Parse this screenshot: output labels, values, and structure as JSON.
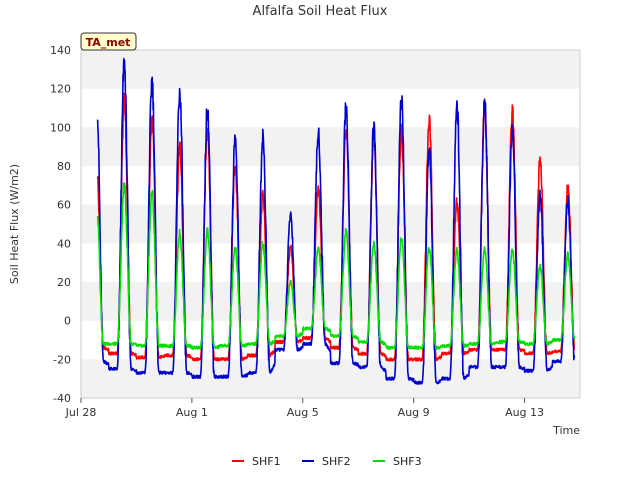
{
  "chart_data": {
    "type": "line",
    "title": "Alfalfa Soil Heat Flux",
    "xlabel": "Time",
    "ylabel": "Soil Heat Flux (W/m2)",
    "ylim": [
      -40,
      140
    ],
    "xlim": [
      "2023-07-28",
      "2023-08-15"
    ],
    "yticks": [
      -40,
      -20,
      0,
      20,
      40,
      60,
      80,
      100,
      120,
      140
    ],
    "xticks": [
      {
        "date": "2023-07-28",
        "label": "Jul 28"
      },
      {
        "date": "2023-08-01",
        "label": "Aug 1"
      },
      {
        "date": "2023-08-05",
        "label": "Aug 5"
      },
      {
        "date": "2023-08-09",
        "label": "Aug 9"
      },
      {
        "date": "2023-08-13",
        "label": "Aug 13"
      }
    ],
    "grid": "horizontal bands",
    "legend_position": "bottom-center",
    "annotation": "TA_met",
    "series": [
      {
        "name": "SHF1",
        "color": "#ff0000",
        "daily_peaks": [
          {
            "date": "2023-07-28",
            "peak": 82,
            "min": -14
          },
          {
            "date": "2023-07-29",
            "peak": 113,
            "min": -17
          },
          {
            "date": "2023-07-30",
            "peak": 104,
            "min": -19
          },
          {
            "date": "2023-07-31",
            "peak": 90,
            "min": -18
          },
          {
            "date": "2023-08-01",
            "peak": 98,
            "min": -20
          },
          {
            "date": "2023-08-02",
            "peak": 80,
            "min": -20
          },
          {
            "date": "2023-08-03",
            "peak": 65,
            "min": -18
          },
          {
            "date": "2023-08-04",
            "peak": 38,
            "min": -11
          },
          {
            "date": "2023-08-05",
            "peak": 68,
            "min": -9
          },
          {
            "date": "2023-08-06",
            "peak": 98,
            "min": -14
          },
          {
            "date": "2023-08-07",
            "peak": 95,
            "min": -17
          },
          {
            "date": "2023-08-08",
            "peak": 98,
            "min": -20
          },
          {
            "date": "2023-08-09",
            "peak": 103,
            "min": -20
          },
          {
            "date": "2023-08-10",
            "peak": 62,
            "min": -17
          },
          {
            "date": "2023-08-11",
            "peak": 110,
            "min": -15
          },
          {
            "date": "2023-08-12",
            "peak": 108,
            "min": -15
          },
          {
            "date": "2023-08-13",
            "peak": 83,
            "min": -17
          },
          {
            "date": "2023-08-14",
            "peak": 70,
            "min": -16
          }
        ]
      },
      {
        "name": "SHF2",
        "color": "#0000cc",
        "daily_peaks": [
          {
            "date": "2023-07-28",
            "peak": 118,
            "min": -21
          },
          {
            "date": "2023-07-29",
            "peak": 133,
            "min": -25
          },
          {
            "date": "2023-07-30",
            "peak": 124,
            "min": -27
          },
          {
            "date": "2023-07-31",
            "peak": 118,
            "min": -27
          },
          {
            "date": "2023-08-01",
            "peak": 110,
            "min": -29
          },
          {
            "date": "2023-08-02",
            "peak": 94,
            "min": -29
          },
          {
            "date": "2023-08-03",
            "peak": 95,
            "min": -27
          },
          {
            "date": "2023-08-04",
            "peak": 55,
            "min": -15
          },
          {
            "date": "2023-08-05",
            "peak": 97,
            "min": -12
          },
          {
            "date": "2023-08-06",
            "peak": 110,
            "min": -22
          },
          {
            "date": "2023-08-07",
            "peak": 99,
            "min": -24
          },
          {
            "date": "2023-08-08",
            "peak": 115,
            "min": -30
          },
          {
            "date": "2023-08-09",
            "peak": 90,
            "min": -32
          },
          {
            "date": "2023-08-10",
            "peak": 112,
            "min": -30
          },
          {
            "date": "2023-08-11",
            "peak": 113,
            "min": -24
          },
          {
            "date": "2023-08-12",
            "peak": 100,
            "min": -24
          },
          {
            "date": "2023-08-13",
            "peak": 65,
            "min": -26
          },
          {
            "date": "2023-08-14",
            "peak": 62,
            "min": -21
          }
        ]
      },
      {
        "name": "SHF3",
        "color": "#00dd00",
        "daily_peaks": [
          {
            "date": "2023-07-28",
            "peak": 60,
            "min": -12
          },
          {
            "date": "2023-07-29",
            "peak": 70,
            "min": -12
          },
          {
            "date": "2023-07-30",
            "peak": 66,
            "min": -13
          },
          {
            "date": "2023-07-31",
            "peak": 45,
            "min": -13
          },
          {
            "date": "2023-08-01",
            "peak": 46,
            "min": -14
          },
          {
            "date": "2023-08-02",
            "peak": 38,
            "min": -13
          },
          {
            "date": "2023-08-03",
            "peak": 40,
            "min": -12
          },
          {
            "date": "2023-08-04",
            "peak": 20,
            "min": -8
          },
          {
            "date": "2023-08-05",
            "peak": 37,
            "min": -4
          },
          {
            "date": "2023-08-06",
            "peak": 46,
            "min": -8
          },
          {
            "date": "2023-08-07",
            "peak": 40,
            "min": -11
          },
          {
            "date": "2023-08-08",
            "peak": 43,
            "min": -14
          },
          {
            "date": "2023-08-09",
            "peak": 37,
            "min": -14
          },
          {
            "date": "2023-08-10",
            "peak": 36,
            "min": -13
          },
          {
            "date": "2023-08-11",
            "peak": 37,
            "min": -12
          },
          {
            "date": "2023-08-12",
            "peak": 36,
            "min": -11
          },
          {
            "date": "2023-08-13",
            "peak": 28,
            "min": -12
          },
          {
            "date": "2023-08-14",
            "peak": 34,
            "min": -10
          }
        ]
      }
    ]
  }
}
